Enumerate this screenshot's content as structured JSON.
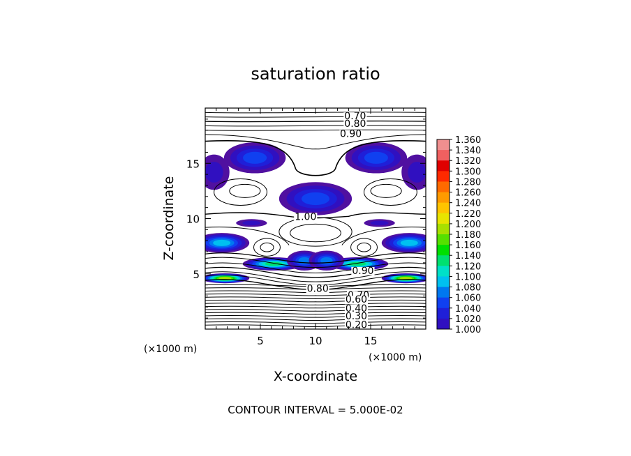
{
  "chart_data": {
    "type": "heatmap",
    "title": "saturation ratio",
    "xlabel": "X-coordinate",
    "ylabel": "Z-coordinate",
    "x_unit": "(×1000 m)",
    "y_unit": "(×1000 m)",
    "xlim": [
      0,
      20
    ],
    "ylim": [
      0,
      20
    ],
    "xticks": [
      "5",
      "10",
      "15"
    ],
    "yticks": [
      "5",
      "10",
      "15"
    ],
    "contour_interval_label": "CONTOUR INTERVAL = 5.000E-02",
    "colorbar": {
      "labels": [
        "1.360",
        "1.340",
        "1.320",
        "1.300",
        "1.280",
        "1.260",
        "1.240",
        "1.220",
        "1.200",
        "1.180",
        "1.160",
        "1.140",
        "1.120",
        "1.100",
        "1.080",
        "1.060",
        "1.040",
        "1.020",
        "1.000"
      ],
      "colors": [
        "#f08f8f",
        "#f06060",
        "#e00000",
        "#ff2a00",
        "#ff6a00",
        "#ff9a00",
        "#ffc400",
        "#e8e400",
        "#a8e000",
        "#56e000",
        "#00e000",
        "#00e070",
        "#00e0c8",
        "#00c0f0",
        "#0078f0",
        "#1040f0",
        "#1f1fd8",
        "#3010c0",
        "#5010a0"
      ]
    },
    "contour_labels": [
      {
        "text": "0.70",
        "x": 13.6,
        "z": 19.3
      },
      {
        "text": "0.80",
        "x": 13.6,
        "z": 18.6
      },
      {
        "text": "0.90",
        "x": 13.2,
        "z": 17.7
      },
      {
        "text": "1.00",
        "x": 9.1,
        "z": 10.2
      },
      {
        "text": "0.90",
        "x": 14.3,
        "z": 5.3
      },
      {
        "text": "0.80",
        "x": 10.2,
        "z": 3.7
      },
      {
        "text": "0.70",
        "x": 13.9,
        "z": 3.1
      },
      {
        "text": "0.60",
        "x": 13.7,
        "z": 2.7
      },
      {
        "text": "0.40",
        "x": 13.7,
        "z": 1.9
      },
      {
        "text": "0.30",
        "x": 13.7,
        "z": 1.2
      },
      {
        "text": "0.20",
        "x": 13.7,
        "z": 0.4
      }
    ],
    "supersaturated_regions": [
      {
        "x": 4.5,
        "z": 15.5,
        "rx": 2.8,
        "rz": 1.4,
        "peak": 1.06
      },
      {
        "x": 15.5,
        "z": 15.5,
        "rx": 2.8,
        "rz": 1.4,
        "peak": 1.06
      },
      {
        "x": 0.8,
        "z": 14.2,
        "rx": 1.4,
        "rz": 1.6,
        "peak": 1.02
      },
      {
        "x": 19.2,
        "z": 14.2,
        "rx": 1.4,
        "rz": 1.6,
        "peak": 1.02
      },
      {
        "x": 10.0,
        "z": 11.8,
        "rx": 3.3,
        "rz": 1.5,
        "peak": 1.06
      },
      {
        "x": 1.5,
        "z": 7.8,
        "rx": 2.5,
        "rz": 0.9,
        "peak": 1.1
      },
      {
        "x": 18.5,
        "z": 7.8,
        "rx": 2.5,
        "rz": 0.9,
        "peak": 1.1
      },
      {
        "x": 4.2,
        "z": 9.6,
        "rx": 1.4,
        "rz": 0.35,
        "peak": 1.0
      },
      {
        "x": 15.8,
        "z": 9.6,
        "rx": 1.4,
        "rz": 0.35,
        "peak": 1.0
      },
      {
        "x": 1.8,
        "z": 4.6,
        "rx": 2.2,
        "rz": 0.45,
        "peak": 1.2
      },
      {
        "x": 18.2,
        "z": 4.6,
        "rx": 2.2,
        "rz": 0.45,
        "peak": 1.2
      },
      {
        "x": 6.2,
        "z": 5.9,
        "rx": 2.8,
        "rz": 0.6,
        "peak": 1.14
      },
      {
        "x": 13.8,
        "z": 5.9,
        "rx": 2.8,
        "rz": 0.6,
        "peak": 1.14
      },
      {
        "x": 9.0,
        "z": 6.2,
        "rx": 1.6,
        "rz": 0.9,
        "peak": 1.08
      },
      {
        "x": 11.0,
        "z": 6.2,
        "rx": 1.6,
        "rz": 0.9,
        "peak": 1.08
      }
    ]
  }
}
